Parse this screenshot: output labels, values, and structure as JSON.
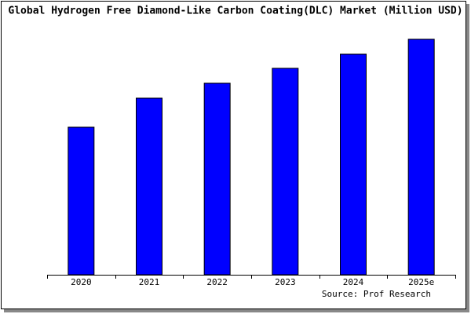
{
  "chart_data": {
    "type": "bar",
    "title": "Global Hydrogen Free Diamond-Like Carbon Coating(DLC) Market (Million USD)",
    "categories": [
      "2020",
      "2021",
      "2022",
      "2023",
      "2024",
      "2025e"
    ],
    "values": [
      188,
      225,
      244,
      263,
      281,
      300
    ],
    "color": "#0000ff",
    "ylim": [
      0,
      305
    ],
    "source": "Source: Prof Research"
  }
}
